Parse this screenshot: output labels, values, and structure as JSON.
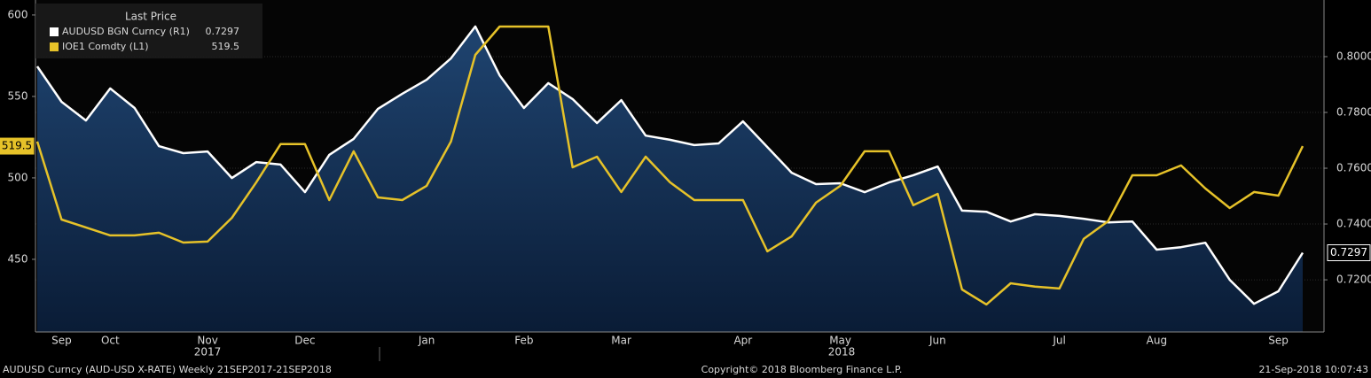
{
  "chart_data": {
    "type": "line",
    "categories": [
      null,
      "Sep",
      null,
      "Oct",
      null,
      null,
      null,
      "Nov",
      null,
      null,
      null,
      "Dec",
      null,
      null,
      null,
      null,
      "Jan",
      null,
      null,
      null,
      "Feb",
      null,
      null,
      null,
      "Mar",
      null,
      null,
      null,
      null,
      "Apr",
      null,
      null,
      null,
      "May",
      null,
      null,
      null,
      "Jun",
      null,
      null,
      null,
      null,
      "Jul",
      null,
      null,
      null,
      "Aug",
      null,
      null,
      null,
      null,
      "Sep",
      null
    ],
    "year_labels": [
      "2017",
      "2018"
    ],
    "legend": "upper left",
    "legend_title": "Last Price",
    "series": [
      {
        "name": "AUDUSD BGN Curncy  (R1)",
        "color": "#ffffff",
        "axis": "y2",
        "fill_area": true,
        "last_label": "0.7297",
        "values": [
          0.7965,
          0.7838,
          0.7771,
          0.7886,
          0.7816,
          0.7679,
          0.7654,
          0.766,
          0.7565,
          0.7622,
          0.7613,
          0.7514,
          0.7648,
          0.7705,
          0.7813,
          0.7867,
          0.7917,
          0.7994,
          0.8108,
          0.7933,
          0.7816,
          0.7905,
          0.7848,
          0.7762,
          0.7844,
          0.7717,
          0.7702,
          0.7683,
          0.7689,
          0.7768,
          0.7676,
          0.7584,
          0.7543,
          0.7546,
          0.7514,
          0.7549,
          0.7575,
          0.7606,
          0.7448,
          0.7444,
          0.7409,
          0.7435,
          0.7429,
          0.7419,
          0.7406,
          0.7409,
          0.7308,
          0.7317,
          0.7333,
          0.72,
          0.7114,
          0.7159,
          0.7297
        ]
      },
      {
        "name": "IOE1 Comdty  (L1)",
        "color": "#e6c229",
        "axis": "y",
        "last_label": "519.5",
        "values": [
          522.3,
          474.4,
          469.6,
          464.7,
          464.7,
          466.3,
          460.3,
          460.9,
          475.5,
          497.3,
          520.7,
          520.7,
          486.4,
          516.3,
          488.0,
          486.4,
          495.1,
          522.3,
          575.5,
          592.9,
          592.9,
          592.9,
          506.5,
          513.0,
          491.3,
          513.0,
          497.3,
          486.4,
          486.4,
          486.4,
          454.9,
          464.1,
          484.8,
          495.1,
          516.3,
          516.3,
          483.2,
          490.2,
          431.5,
          422.3,
          435.3,
          433.2,
          432.1,
          462.5,
          473.4,
          501.6,
          501.6,
          507.6,
          493.5,
          481.5,
          491.3,
          489.1,
          519.5
        ]
      }
    ],
    "ylim": [
      405.4,
      609.2
    ],
    "yticks": [
      450,
      500,
      550,
      600
    ],
    "y2lim": [
      0.7013,
      0.8203
    ],
    "y2ticks": [
      {
        "value": 0.72,
        "label": "0.7200"
      },
      {
        "value": 0.74,
        "label": "0.7400"
      },
      {
        "value": 0.76,
        "label": "0.7600"
      },
      {
        "value": 0.78,
        "label": "0.7800"
      },
      {
        "value": 0.8,
        "label": "0.8000"
      }
    ],
    "grid": true,
    "footer": {
      "left": "AUDUSD Curncy (AUD-USD X-RATE)  Weekly 21SEP2017-21SEP2018",
      "center": "Copyright© 2018 Bloomberg Finance L.P.",
      "right": "21-Sep-2018 10:07:43"
    }
  }
}
